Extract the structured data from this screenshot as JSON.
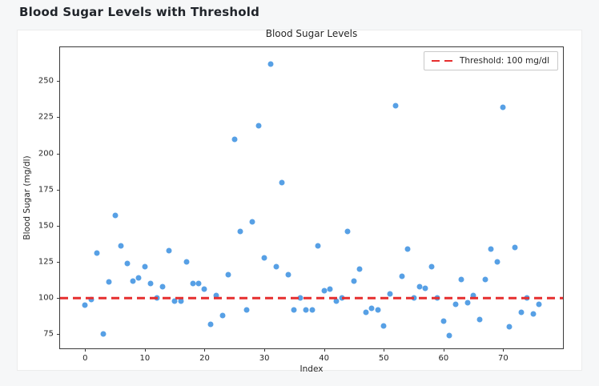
{
  "page": {
    "title": "Blood Sugar Levels with Threshold"
  },
  "chart_data": {
    "type": "scatter",
    "title": "Blood Sugar Levels",
    "xlabel": "Index",
    "ylabel": "Blood Sugar (mg/dl)",
    "xlim": [
      -4.2,
      80.0
    ],
    "ylim": [
      65.3,
      273.4
    ],
    "x_ticks": [
      0,
      10,
      20,
      30,
      40,
      50,
      60,
      70
    ],
    "y_ticks": [
      75,
      100,
      125,
      150,
      175,
      200,
      225,
      250
    ],
    "grid": false,
    "point_color": "#57a0e5",
    "threshold": {
      "value": 100,
      "color": "#e62e2e",
      "style": "dashed"
    },
    "legend": {
      "position": "upper right",
      "label": "Threshold: 100 mg/dl"
    },
    "series": [
      {
        "name": "Blood Sugar",
        "x": [
          0,
          1,
          2,
          3,
          4,
          5,
          6,
          7,
          8,
          9,
          10,
          11,
          12,
          13,
          14,
          15,
          16,
          17,
          18,
          19,
          20,
          21,
          22,
          23,
          24,
          25,
          26,
          27,
          28,
          29,
          30,
          31,
          32,
          33,
          34,
          35,
          36,
          37,
          38,
          39,
          40,
          41,
          42,
          43,
          44,
          45,
          46,
          47,
          48,
          49,
          50,
          51,
          52,
          53,
          54,
          55,
          56,
          57,
          58,
          59,
          60,
          61,
          62,
          63,
          64,
          65,
          66,
          67,
          68,
          69,
          70,
          71,
          72,
          73,
          74,
          75,
          76
        ],
        "y": [
          95,
          99,
          131,
          75,
          111,
          157,
          136,
          124,
          112,
          114,
          122,
          110,
          100,
          108,
          133,
          98,
          98,
          125,
          110,
          110,
          106,
          82,
          102,
          88,
          116,
          210,
          146,
          92,
          153,
          219,
          128,
          262,
          122,
          180,
          116,
          92,
          100,
          92,
          92,
          136,
          105,
          106,
          98,
          100,
          146,
          112,
          120,
          90,
          93,
          92,
          81,
          103,
          233,
          115,
          134,
          100,
          108,
          107,
          122,
          100,
          84,
          74,
          96,
          113,
          97,
          102,
          85,
          113,
          134,
          125,
          232,
          80,
          135,
          90,
          100,
          89,
          96
        ]
      }
    ]
  }
}
